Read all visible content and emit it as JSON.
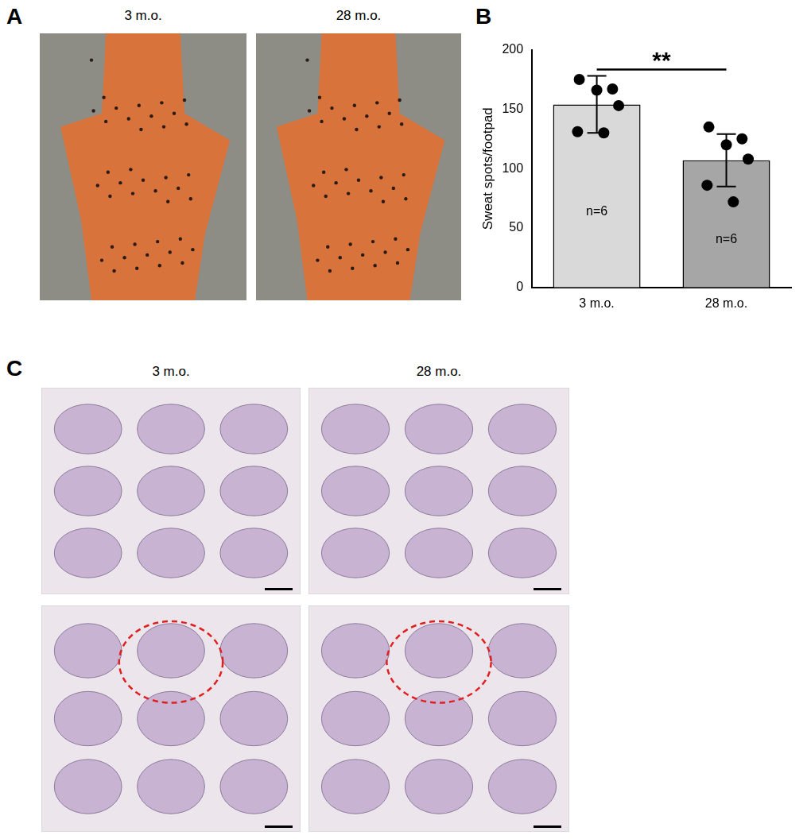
{
  "panels": {
    "A": {
      "letter": "A",
      "titles": [
        "3 m.o.",
        "28 m.o."
      ]
    },
    "B": {
      "letter": "B"
    },
    "C": {
      "letter": "C",
      "titles": [
        "3 m.o.",
        "28 m.o."
      ]
    }
  },
  "chart_data": {
    "type": "bar",
    "categories": [
      "3 m.o.",
      "28 m.o."
    ],
    "values": [
      154,
      107
    ],
    "error": [
      24,
      22
    ],
    "points": [
      [
        175,
        167,
        166,
        153,
        131,
        130
      ],
      [
        135,
        125,
        120,
        108,
        86,
        72
      ]
    ],
    "colors": [
      "#d9d9d9",
      "#a6a6a6"
    ],
    "y_label": "Sweat spots/footpad",
    "ylim": [
      0,
      200
    ],
    "yticks": [
      0,
      50,
      100,
      150,
      200
    ],
    "grid": false,
    "annotations": [
      {
        "text": "n=6",
        "category": "3 m.o."
      },
      {
        "text": "n=6",
        "category": "28 m.o."
      }
    ],
    "significance": {
      "text": "**",
      "between": [
        "3 m.o.",
        "28 m.o."
      ]
    }
  }
}
